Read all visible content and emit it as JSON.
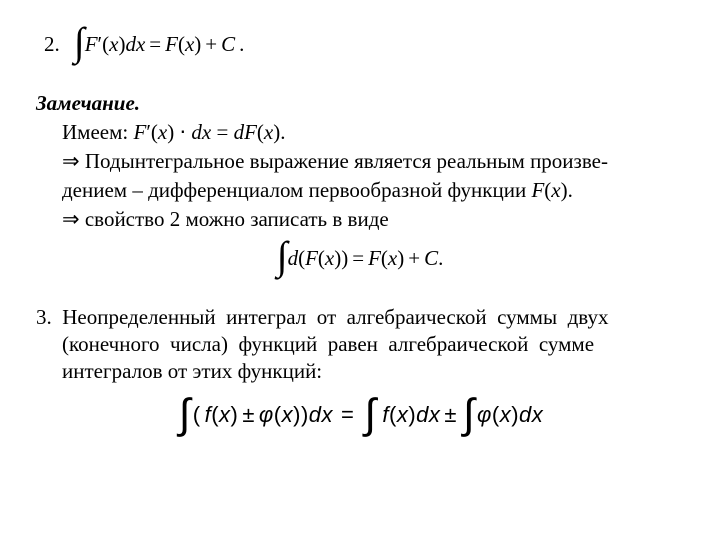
{
  "typography": {
    "body_font": "Times New Roman",
    "body_size_pt": 16,
    "eq3_font": "Arial",
    "color_text": "#000000",
    "color_bg": "#ffffff"
  },
  "item2": {
    "number": "2.",
    "lhs_F": "F",
    "lhs_prime": "′",
    "lhs_open": "(",
    "lhs_x": "x",
    "lhs_close": ")",
    "dx": "dx",
    "eq": "=",
    "rhs_F": "F",
    "rhs_open": "(",
    "rhs_x": "x",
    "rhs_close": ")",
    "plus": "+",
    "C": "C",
    "dot": "."
  },
  "remark": {
    "title": "Замечание.",
    "line1_prefix": "Имеем: ",
    "line1_expr_F": "F",
    "line1_prime": "′",
    "line1_open": "(",
    "line1_x1": "x",
    "line1_close": ")",
    "line1_dot": " ⋅ ",
    "line1_dx": "dx",
    "line1_eq": " = ",
    "line1_dF": "dF",
    "line1_open2": "(",
    "line1_x2": "x",
    "line1_close2": ").",
    "line2": "⇒ Подынтегральное выражение является реальным произве-",
    "line3_prefix": "дением – дифференциалом первообразной функции ",
    "line3_F": "F",
    "line3_open": "(",
    "line3_x": "x",
    "line3_close": ").",
    "line4": "⇒ свойство 2 можно записать в виде"
  },
  "eq_center": {
    "d": "d",
    "open1": "(",
    "F1": "F",
    "open2": "(",
    "x1": "x",
    "close2": ")",
    "close1": ")",
    "eq": "=",
    "F2": "F",
    "open3": "(",
    "x2": "x",
    "close3": ")",
    "plus": "+",
    "C": "C",
    "dot": "."
  },
  "item3": {
    "line1": "3. Неопределенный интеграл от алгебраической суммы двух",
    "line2": "(конечного числа) функций равен алгебраической сумме",
    "line3": "интегралов от этих функций:"
  },
  "eq3": {
    "open": "(",
    "f": "f",
    "open_x1": "(",
    "x1": "x",
    "close_x1": ")",
    "pm1": "±",
    "phi": "φ",
    "open_x2": "(",
    "x2": "x",
    "close_x2": ")",
    "close": ")",
    "dx1": "dx",
    "eq": "=",
    "f2": "f",
    "open_x3": "(",
    "x3": "x",
    "close_x3": ")",
    "dx2": "dx",
    "pm2": "±",
    "phi2": "φ",
    "open_x4": "(",
    "x4": "x",
    "close_x4": ")",
    "dx3": "dx"
  }
}
